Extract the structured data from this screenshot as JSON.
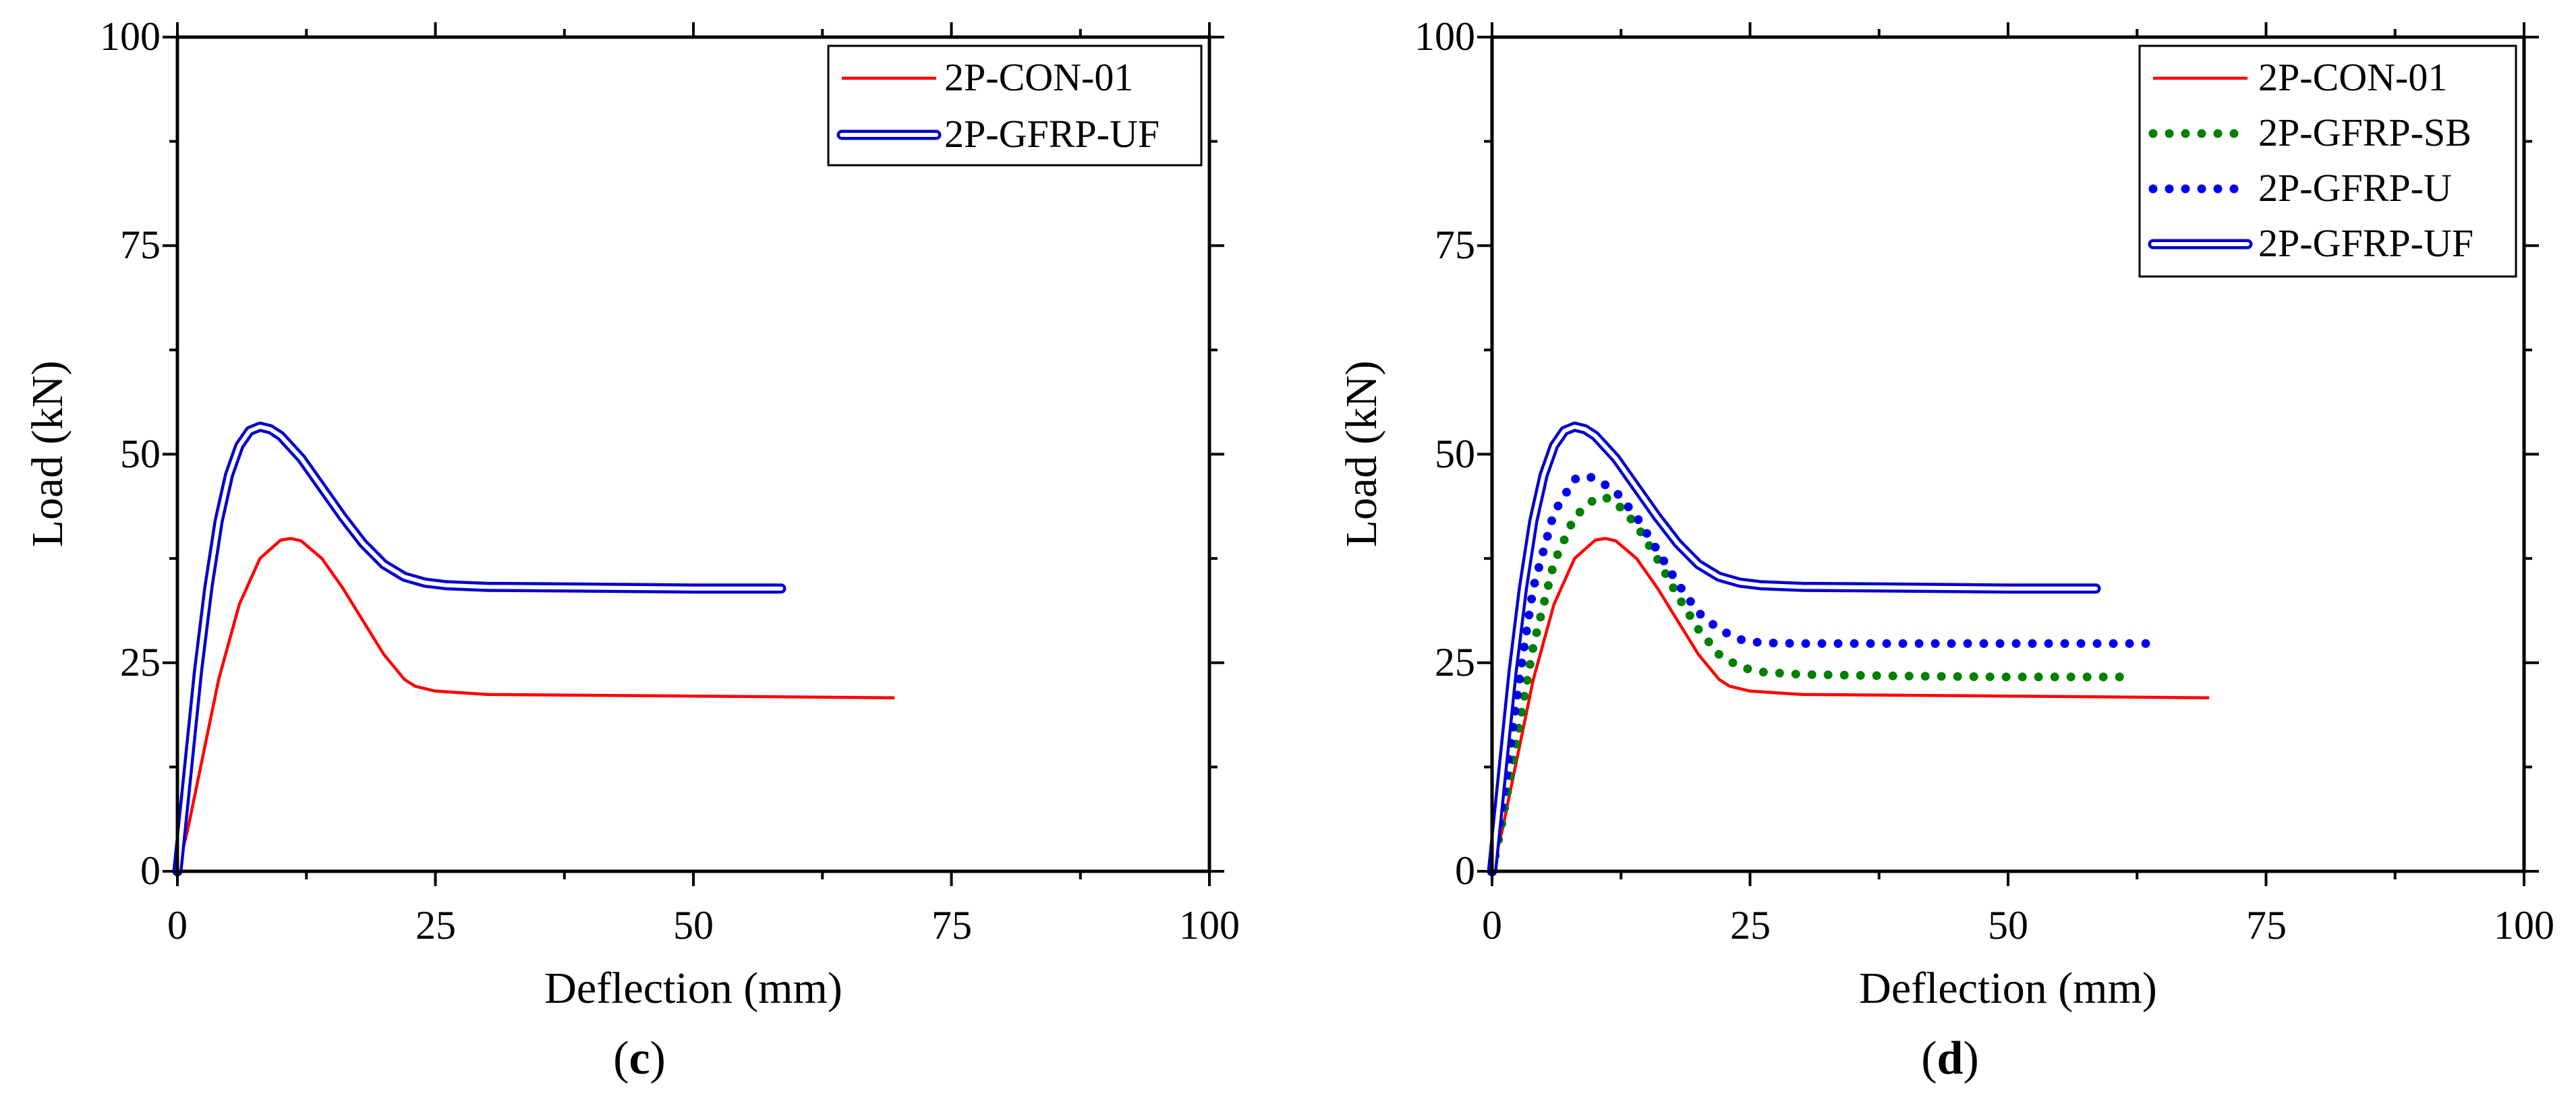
{
  "chart_data": [
    {
      "type": "line",
      "panel": "(c)",
      "panel_letter": "c",
      "xlabel": "Deflection (mm)",
      "ylabel": "Load (kN)",
      "xlim": [
        0,
        100
      ],
      "ylim": [
        0,
        100
      ],
      "xticks": [
        0,
        25,
        50,
        75,
        100
      ],
      "yticks": [
        0,
        25,
        50,
        75,
        100
      ],
      "xtick_labels": [
        "0",
        "25",
        "50",
        "75",
        "100"
      ],
      "ytick_labels": [
        "0",
        "25",
        "50",
        "75",
        "100"
      ],
      "grid": false,
      "legend_position": "top-right",
      "series": [
        {
          "name": "2P-CON-01",
          "style": "solid",
          "color": "#ff0000",
          "x": [
            0,
            1,
            2,
            4,
            6,
            8,
            10,
            11,
            12,
            14,
            16,
            18,
            20,
            22,
            23,
            25,
            30,
            40,
            50,
            60,
            69.5
          ],
          "y": [
            0,
            5,
            11,
            23,
            32,
            37.5,
            39.7,
            39.9,
            39.6,
            37.5,
            34,
            30,
            26,
            23,
            22.2,
            21.6,
            21.2,
            21.1,
            21,
            20.9,
            20.8
          ]
        },
        {
          "name": "2P-GFRP-UF",
          "style": "double",
          "color": "#0000cc",
          "x": [
            0,
            1,
            2,
            3,
            4,
            5,
            6,
            7,
            8,
            9,
            10,
            12,
            14,
            16,
            18,
            20,
            22,
            24,
            26,
            30,
            40,
            50,
            58.5
          ],
          "y": [
            0,
            12,
            24,
            34,
            42,
            47.5,
            51,
            52.8,
            53.3,
            53,
            52.2,
            49.5,
            46,
            42.5,
            39.3,
            36.8,
            35.3,
            34.6,
            34.3,
            34.1,
            34,
            33.9,
            33.9
          ]
        }
      ]
    },
    {
      "type": "line",
      "panel": "(d)",
      "panel_letter": "d",
      "xlabel": "Deflection (mm)",
      "ylabel": "Load (kN)",
      "xlim": [
        0,
        100
      ],
      "ylim": [
        0,
        100
      ],
      "xticks": [
        0,
        25,
        50,
        75,
        100
      ],
      "yticks": [
        0,
        25,
        50,
        75,
        100
      ],
      "xtick_labels": [
        "0",
        "25",
        "50",
        "75",
        "100"
      ],
      "ytick_labels": [
        "0",
        "25",
        "50",
        "75",
        "100"
      ],
      "grid": false,
      "legend_position": "top-right",
      "series": [
        {
          "name": "2P-CON-01",
          "style": "solid",
          "color": "#ff0000",
          "x": [
            0,
            1,
            2,
            4,
            6,
            8,
            10,
            11,
            12,
            14,
            16,
            18,
            20,
            22,
            23,
            25,
            30,
            40,
            50,
            60,
            69.5
          ],
          "y": [
            0,
            5,
            11,
            23,
            32,
            37.5,
            39.7,
            39.9,
            39.6,
            37.5,
            34,
            30,
            26,
            23,
            22.2,
            21.6,
            21.2,
            21.1,
            21,
            20.9,
            20.8
          ]
        },
        {
          "name": "2P-GFRP-SB",
          "style": "dotted",
          "color": "#008000",
          "x": [
            0,
            1,
            2,
            4,
            6,
            8,
            10,
            11,
            12,
            14,
            16,
            18,
            20,
            22,
            24,
            26,
            30,
            40,
            50,
            62
          ],
          "y": [
            0,
            6,
            13,
            27,
            37,
            42.5,
            44.7,
            44.8,
            44.2,
            41.5,
            37.5,
            33,
            29,
            26,
            24.5,
            23.9,
            23.6,
            23.4,
            23.3,
            23.3
          ]
        },
        {
          "name": "2P-GFRP-U",
          "style": "dotted",
          "color": "#0000ee",
          "x": [
            0,
            1,
            2,
            3,
            4,
            6,
            8,
            9,
            10,
            12,
            14,
            16,
            18,
            20,
            22,
            24,
            26,
            30,
            40,
            50,
            64
          ],
          "y": [
            0,
            8,
            17,
            26,
            34,
            43,
            47,
            47.4,
            47.1,
            45.5,
            42.5,
            38.5,
            34.5,
            31,
            29,
            27.8,
            27.4,
            27.3,
            27.3,
            27.3,
            27.3
          ]
        },
        {
          "name": "2P-GFRP-UF",
          "style": "double",
          "color": "#0000cc",
          "x": [
            0,
            1,
            2,
            3,
            4,
            5,
            6,
            7,
            8,
            9,
            10,
            12,
            14,
            16,
            18,
            20,
            22,
            24,
            26,
            30,
            40,
            50,
            58.5
          ],
          "y": [
            0,
            12,
            24,
            34,
            42,
            47.5,
            51,
            52.8,
            53.3,
            53,
            52.2,
            49.5,
            46,
            42.5,
            39.3,
            36.8,
            35.3,
            34.6,
            34.3,
            34.1,
            34,
            33.9,
            33.9
          ]
        }
      ]
    }
  ]
}
